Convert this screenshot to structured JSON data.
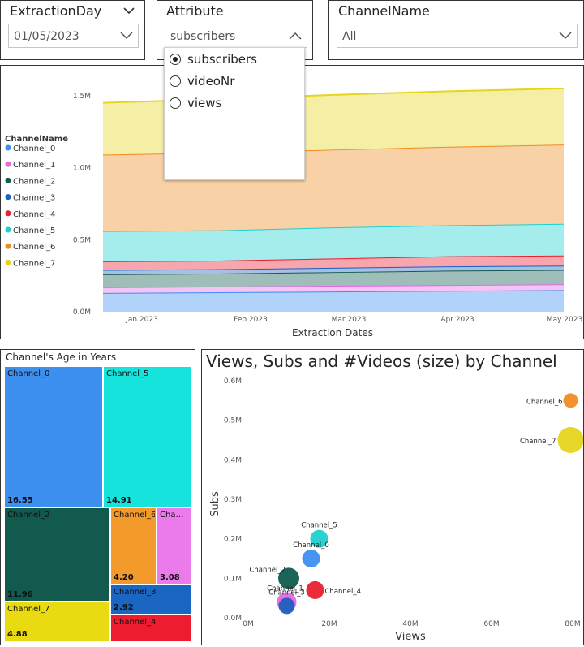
{
  "slicers": {
    "extraction_day": {
      "title": "ExtractionDay",
      "value": "01/05/2023"
    },
    "attribute": {
      "title": "Attribute",
      "value": "subscribers",
      "options": [
        {
          "label": "subscribers",
          "selected": true
        },
        {
          "label": "videoNr",
          "selected": false
        },
        {
          "label": "views",
          "selected": false
        }
      ]
    },
    "channel_name": {
      "title": "ChannelName",
      "value": "All"
    }
  },
  "area_chart": {
    "legend_title": "ChannelName",
    "legend": [
      {
        "name": "Channel_0",
        "color": "#3d8ff0"
      },
      {
        "name": "Channel_1",
        "color": "#e668e6"
      },
      {
        "name": "Channel_2",
        "color": "#115c4f"
      },
      {
        "name": "Channel_3",
        "color": "#1d5fbf"
      },
      {
        "name": "Channel_4",
        "color": "#e8202f"
      },
      {
        "name": "Channel_5",
        "color": "#1ecfcf"
      },
      {
        "name": "Channel_6",
        "color": "#ef8c22"
      },
      {
        "name": "Channel_7",
        "color": "#e6d51d"
      }
    ],
    "x_label": "Extraction Dates",
    "x_ticks": [
      "Jan 2023",
      "Feb 2023",
      "Mar 2023",
      "Apr 2023",
      "May 2023"
    ],
    "y_ticks": [
      "0.0M",
      "0.5M",
      "1.0M",
      "1.5M"
    ]
  },
  "treemap": {
    "title": "Channel's Age in Years",
    "cells": [
      {
        "name": "Channel_0",
        "value": "16.55",
        "color": "#3d8ff0"
      },
      {
        "name": "Channel_5",
        "value": "14.91",
        "color": "#16e4dc"
      },
      {
        "name": "Channel_2",
        "value": "11.96",
        "color": "#125a4d"
      },
      {
        "name": "Channel_6",
        "value": "4.20",
        "color": "#f29a2a"
      },
      {
        "name": "Channel_1",
        "label": "Cha…",
        "value": "3.08",
        "color": "#eb7aeb"
      },
      {
        "name": "Channel_3",
        "value": "2.92",
        "color": "#1a66c2"
      },
      {
        "name": "Channel_7",
        "value": "4.88",
        "color": "#e9da12"
      },
      {
        "name": "Channel_4",
        "value": "",
        "color": "#ed1c2e"
      }
    ]
  },
  "scatter": {
    "title": "Views, Subs and #Videos (size) by Channel",
    "x_label": "Views",
    "y_label": "Subs",
    "x_ticks": [
      "0M",
      "20M",
      "40M",
      "60M",
      "80M"
    ],
    "y_ticks": [
      "0.0M",
      "0.1M",
      "0.2M",
      "0.3M",
      "0.4M",
      "0.5M",
      "0.6M"
    ],
    "point_labels": [
      "Channel_6",
      "Channel_7",
      "Channel_5",
      "Channel_0",
      "Channel_2",
      "Channel_1",
      "Channel_3",
      "Channel_4"
    ]
  },
  "chart_data": [
    {
      "type": "area",
      "title": "",
      "xlabel": "Extraction Dates",
      "ylabel": "",
      "stacked": true,
      "x": [
        "Jan 2023",
        "Feb 2023",
        "Mar 2023",
        "Apr 2023",
        "May 2023"
      ],
      "ylim": [
        0,
        1.6
      ],
      "y_unit": "M",
      "series": [
        {
          "name": "Channel_0",
          "color": "#3d8ff0",
          "values": [
            0.13,
            0.135,
            0.14,
            0.145,
            0.15
          ]
        },
        {
          "name": "Channel_1",
          "color": "#e668e6",
          "values": [
            0.04,
            0.04,
            0.04,
            0.04,
            0.04
          ]
        },
        {
          "name": "Channel_2",
          "color": "#115c4f",
          "values": [
            0.09,
            0.09,
            0.095,
            0.1,
            0.1
          ]
        },
        {
          "name": "Channel_3",
          "color": "#1d5fbf",
          "values": [
            0.03,
            0.03,
            0.03,
            0.03,
            0.03
          ]
        },
        {
          "name": "Channel_4",
          "color": "#e8202f",
          "values": [
            0.06,
            0.06,
            0.065,
            0.07,
            0.07
          ]
        },
        {
          "name": "Channel_5",
          "color": "#1ecfcf",
          "values": [
            0.21,
            0.21,
            0.215,
            0.215,
            0.22
          ]
        },
        {
          "name": "Channel_6",
          "color": "#ef8c22",
          "values": [
            0.53,
            0.54,
            0.54,
            0.545,
            0.55
          ]
        },
        {
          "name": "Channel_7",
          "color": "#e6d51d",
          "values": [
            0.36,
            0.37,
            0.38,
            0.385,
            0.39
          ]
        }
      ]
    },
    {
      "type": "scatter",
      "title": "Views, Subs and #Videos (size) by Channel",
      "xlabel": "Views",
      "ylabel": "Subs",
      "xlim": [
        0,
        80
      ],
      "ylim": [
        0,
        0.6
      ],
      "x_unit": "M",
      "y_unit": "M",
      "points": [
        {
          "name": "Channel_6",
          "x": 79.5,
          "y": 0.55,
          "color": "#ef8c22"
        },
        {
          "name": "Channel_7",
          "x": 79.5,
          "y": 0.45,
          "color": "#e6d51d"
        },
        {
          "name": "Channel_5",
          "x": 17.5,
          "y": 0.2,
          "color": "#1ecfcf"
        },
        {
          "name": "Channel_0",
          "x": 15.5,
          "y": 0.15,
          "color": "#3d8ff0"
        },
        {
          "name": "Channel_2",
          "x": 10,
          "y": 0.1,
          "color": "#115c4f"
        },
        {
          "name": "Channel_1",
          "x": 9.5,
          "y": 0.04,
          "color": "#e668e6"
        },
        {
          "name": "Channel_3",
          "x": 9.5,
          "y": 0.03,
          "color": "#1d5fbf"
        },
        {
          "name": "Channel_4",
          "x": 16.5,
          "y": 0.07,
          "color": "#e8202f"
        }
      ]
    },
    {
      "type": "treemap",
      "title": "Channel's Age in Years",
      "categories": [
        "Channel_0",
        "Channel_5",
        "Channel_2",
        "Channel_6",
        "Channel_1",
        "Channel_3",
        "Channel_7",
        "Channel_4"
      ],
      "values": [
        16.55,
        14.91,
        11.96,
        4.2,
        3.08,
        2.92,
        4.88,
        null
      ]
    }
  ]
}
